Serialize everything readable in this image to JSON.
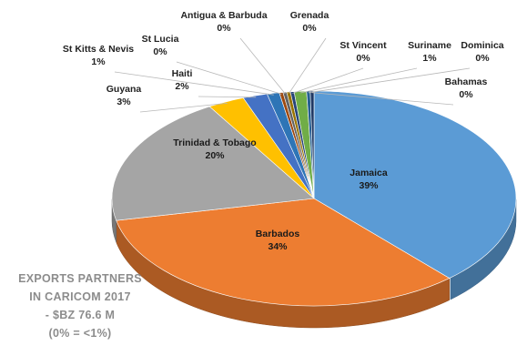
{
  "chart_data": {
    "type": "pie",
    "title_lines": [
      "EXPORTS PARTNERS",
      "IN CARICOM 2017",
      "- $BZ 76.6 M",
      "(0% = <1%)"
    ],
    "slices": [
      {
        "label": "Jamaica",
        "value": 39,
        "display": "39%",
        "color": "#5b9bd5"
      },
      {
        "label": "Barbados",
        "value": 34,
        "display": "34%",
        "color": "#ed7d31"
      },
      {
        "label": "Trinidad & Tobago",
        "value": 20,
        "display": "20%",
        "color": "#a5a5a5"
      },
      {
        "label": "Guyana",
        "value": 3,
        "display": "3%",
        "color": "#ffc000"
      },
      {
        "label": "Haiti",
        "value": 2,
        "display": "2%",
        "color": "#4472c4"
      },
      {
        "label": "St Kitts & Nevis",
        "value": 1,
        "display": "1%",
        "color": "#2e75b6"
      },
      {
        "label": "St Lucia",
        "value": 0.3,
        "display": "0%",
        "color": "#9e480e"
      },
      {
        "label": "Antigua & Barbuda",
        "value": 0.3,
        "display": "0%",
        "color": "#636363"
      },
      {
        "label": "Grenada",
        "value": 0.3,
        "display": "0%",
        "color": "#997300"
      },
      {
        "label": "St Vincent",
        "value": 0.3,
        "display": "0%",
        "color": "#264478"
      },
      {
        "label": "Suriname",
        "value": 1,
        "display": "1%",
        "color": "#70ad47"
      },
      {
        "label": "Dominica",
        "value": 0.3,
        "display": "0%",
        "color": "#255e91"
      },
      {
        "label": "Bahamas",
        "value": 0.3,
        "display": "0%",
        "color": "#1f3864"
      }
    ]
  }
}
